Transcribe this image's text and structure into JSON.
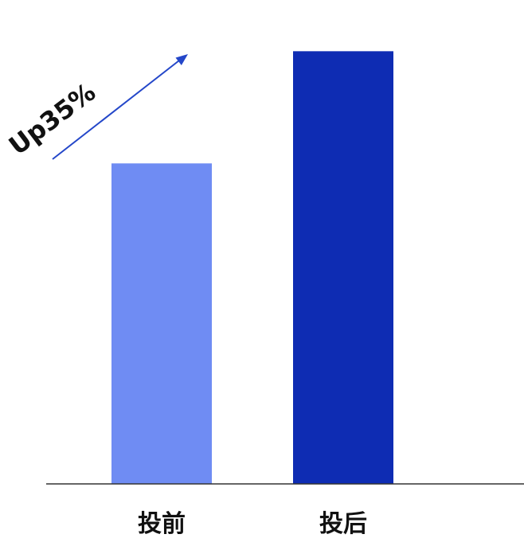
{
  "chart_data": {
    "type": "bar",
    "categories": [
      "投前",
      "投后"
    ],
    "values": [
      100,
      135
    ],
    "ylim": [
      0,
      148
    ],
    "grid": false,
    "title": "",
    "xlabel": "",
    "ylabel": "",
    "annotation": "Up35%",
    "colors": [
      "#6f8cf3",
      "#0e2cb3"
    ],
    "axis_color": "#333333",
    "arrow_color": "#2447c9"
  }
}
